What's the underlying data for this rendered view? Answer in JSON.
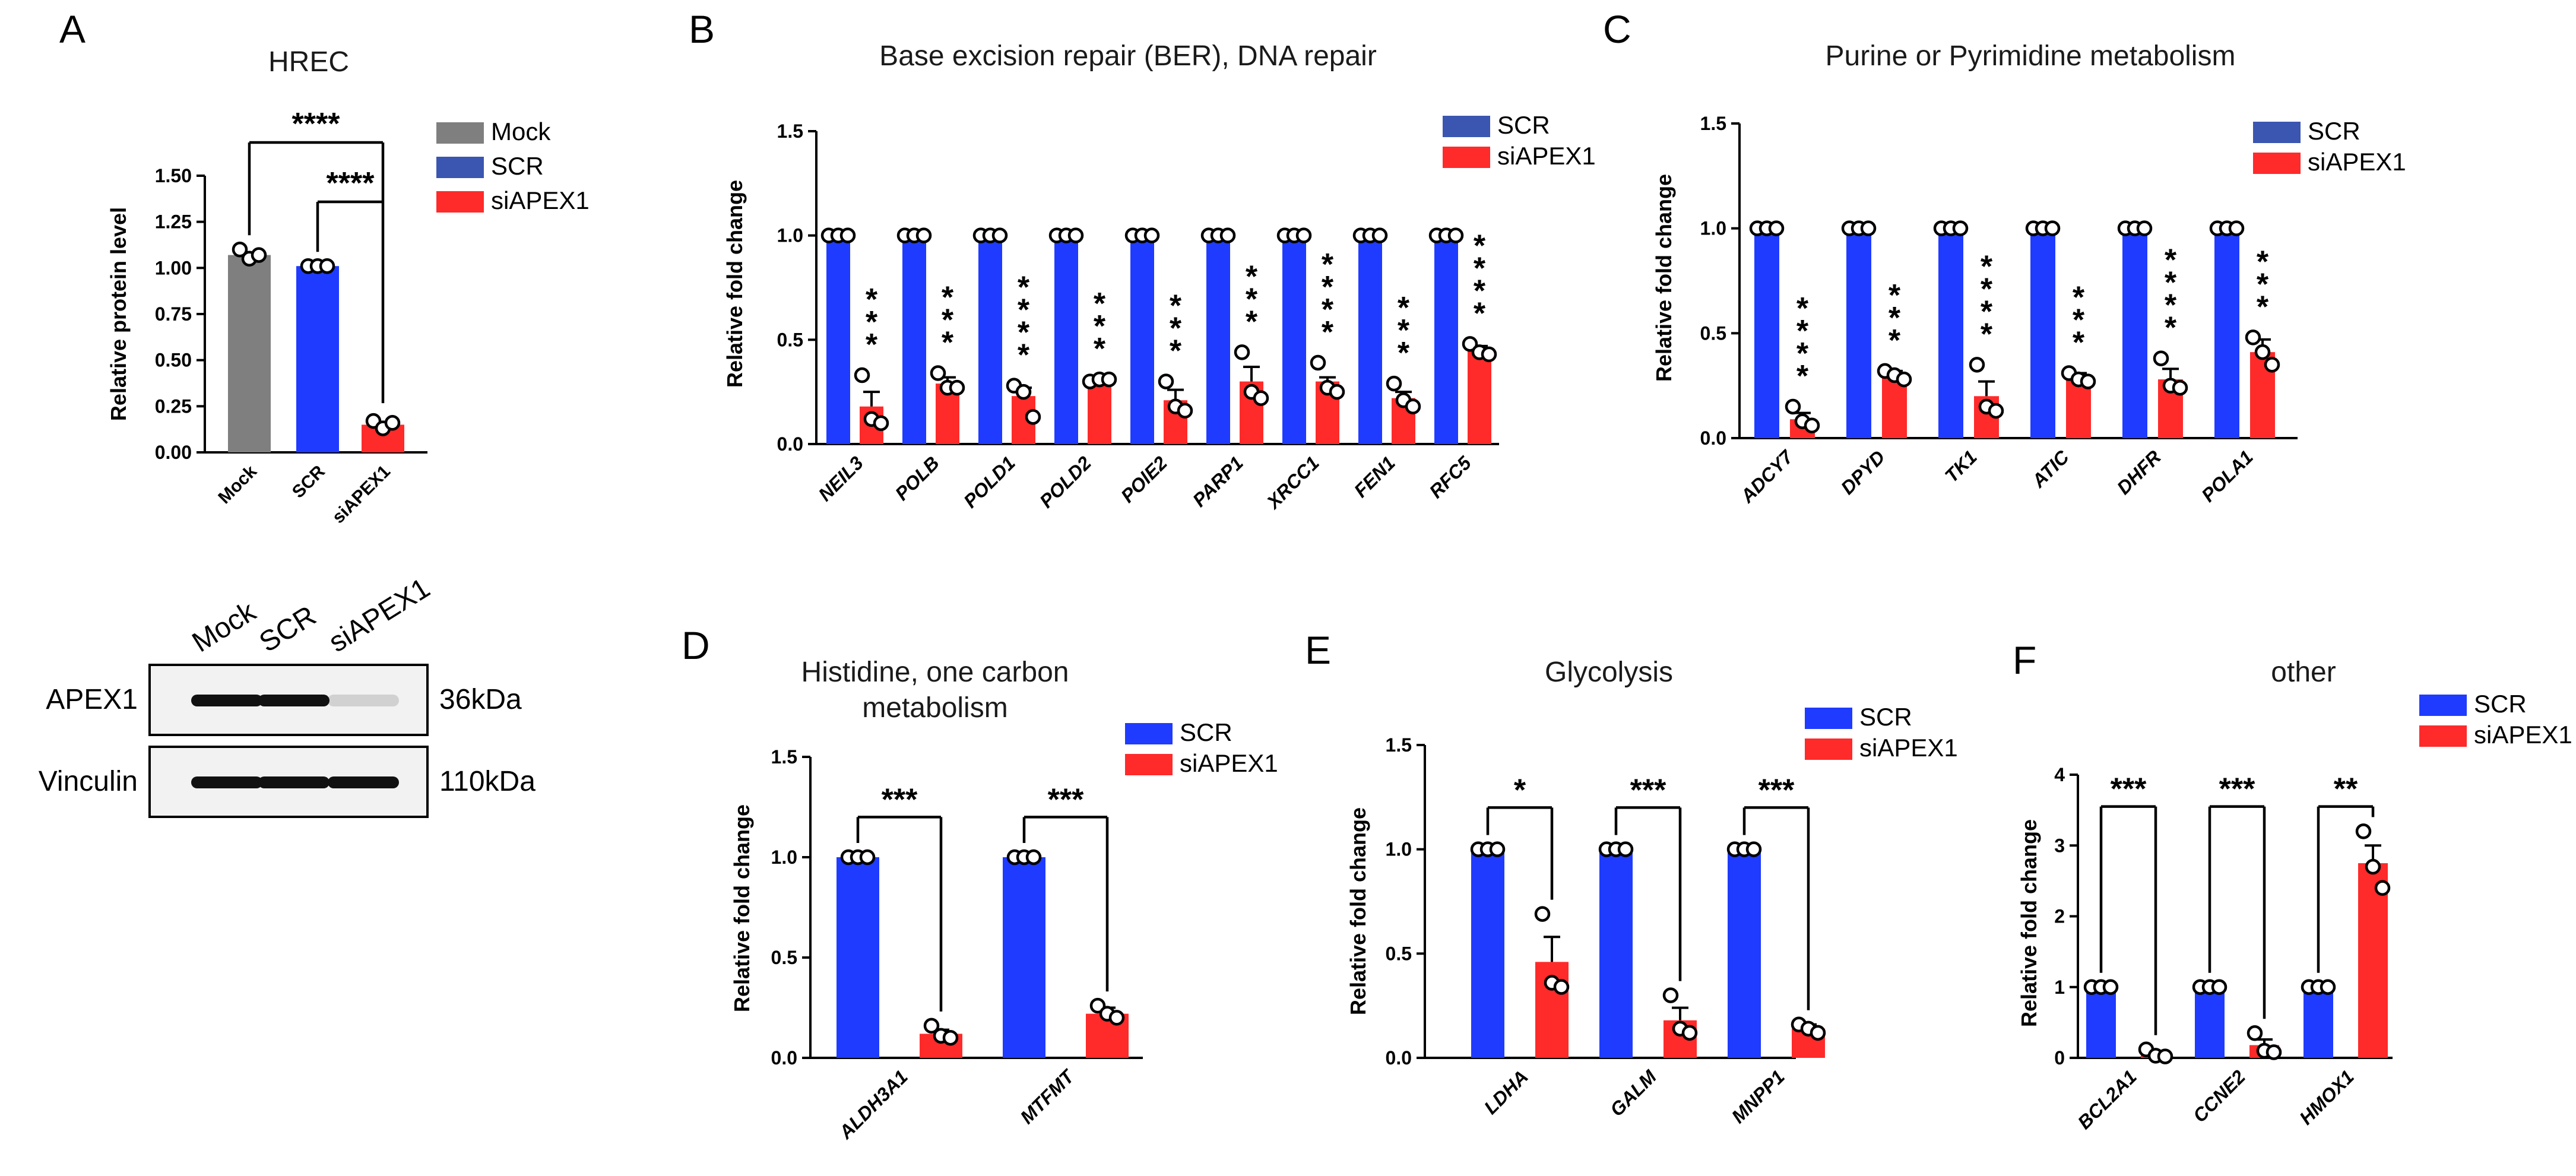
{
  "colors": {
    "mock": "#7f7f7f",
    "scr": "#1f3bff",
    "si": "#ff2a2a",
    "legend_scr_dark": "#3a56b0"
  },
  "panelA": {
    "label": "A",
    "title": "HREC",
    "ylabel": "Relative protein level",
    "chart_data": {
      "type": "bar",
      "categories": [
        "Mock",
        "SCR",
        "siAPEX1"
      ],
      "values": [
        1.07,
        1.01,
        0.15
      ],
      "points": [
        [
          1.1,
          1.05,
          1.07
        ],
        [
          1.01,
          1.01,
          1.01
        ],
        [
          0.17,
          0.13,
          0.16
        ]
      ],
      "ylim": [
        0,
        1.5
      ],
      "yticks": [
        "0.00",
        "0.25",
        "0.50",
        "0.75",
        "1.00",
        "1.25",
        "1.50"
      ],
      "legend": [
        "Mock",
        "SCR",
        "siAPEX1"
      ],
      "sig": [
        "****",
        "****"
      ]
    },
    "blot": {
      "lanes": [
        "Mock",
        "SCR",
        "siAPEX1"
      ],
      "rows": [
        {
          "name": "APEX1",
          "kda": "36kDa"
        },
        {
          "name": "Vinculin",
          "kda": "110kDa"
        }
      ]
    }
  },
  "panelB": {
    "label": "B",
    "title": "Base excision repair (BER), DNA repair",
    "ylabel": "Relative fold change",
    "chart_data": {
      "type": "bar",
      "categories": [
        "NEIL3",
        "POLB",
        "POLD1",
        "POLD2",
        "POlE2",
        "PARP1",
        "XRCC1",
        "FEN1",
        "RFC5"
      ],
      "ylim": [
        0,
        1.5
      ],
      "yticks": [
        "0.0",
        "0.5",
        "1.0",
        "1.5"
      ],
      "series": [
        {
          "name": "SCR",
          "values": [
            1,
            1,
            1,
            1,
            1,
            1,
            1,
            1,
            1
          ]
        },
        {
          "name": "siAPEX1",
          "values": [
            0.18,
            0.29,
            0.23,
            0.31,
            0.21,
            0.3,
            0.3,
            0.22,
            0.45
          ],
          "err": [
            0.07,
            0.03,
            0.04,
            0.01,
            0.05,
            0.07,
            0.02,
            0.03,
            0.02
          ]
        }
      ],
      "points": [
        [
          0.33,
          0.12,
          0.1
        ],
        [
          0.34,
          0.27,
          0.27
        ],
        [
          0.28,
          0.25,
          0.13
        ],
        [
          0.3,
          0.31,
          0.31
        ],
        [
          0.3,
          0.18,
          0.16
        ],
        [
          0.44,
          0.25,
          0.22
        ],
        [
          0.39,
          0.27,
          0.25
        ],
        [
          0.29,
          0.21,
          0.18
        ],
        [
          0.48,
          0.44,
          0.43
        ]
      ],
      "sig": [
        "***",
        "***",
        "****",
        "***",
        "***",
        "***",
        "****",
        "***",
        "****"
      ],
      "legend": [
        "SCR",
        "siAPEX1"
      ]
    }
  },
  "panelC": {
    "label": "C",
    "title": "Purine or Pyrimidine metabolism",
    "ylabel": "Relative fold change",
    "chart_data": {
      "type": "bar",
      "categories": [
        "ADCY7",
        "DPYD",
        "TK1",
        "ATIC",
        "DHFR",
        "POLA1"
      ],
      "ylim": [
        0,
        1.5
      ],
      "yticks": [
        "0.0",
        "0.5",
        "1.0",
        "1.5"
      ],
      "series": [
        {
          "name": "SCR",
          "values": [
            1,
            1,
            1,
            1,
            1,
            1
          ]
        },
        {
          "name": "siAPEX1",
          "values": [
            0.09,
            0.3,
            0.2,
            0.29,
            0.28,
            0.41
          ],
          "err": [
            0.03,
            0.02,
            0.07,
            0.02,
            0.05,
            0.06
          ]
        }
      ],
      "points": [
        [
          0.15,
          0.08,
          0.06
        ],
        [
          0.32,
          0.3,
          0.28
        ],
        [
          0.35,
          0.15,
          0.13
        ],
        [
          0.31,
          0.28,
          0.27
        ],
        [
          0.38,
          0.25,
          0.24
        ],
        [
          0.48,
          0.41,
          0.35
        ]
      ],
      "sig": [
        "****",
        "***",
        "****",
        "***",
        "****",
        "***"
      ],
      "legend": [
        "SCR",
        "siAPEX1"
      ]
    }
  },
  "panelD": {
    "label": "D",
    "title_line1": "Histidine, one carbon",
    "title_line2": "metabolism",
    "ylabel": "Relative fold change",
    "chart_data": {
      "type": "bar",
      "categories": [
        "ALDH3A1",
        "MTFMT"
      ],
      "ylim": [
        0,
        1.5
      ],
      "yticks": [
        "0.0",
        "0.5",
        "1.0",
        "1.5"
      ],
      "series": [
        {
          "name": "SCR",
          "values": [
            1,
            1
          ]
        },
        {
          "name": "siAPEX1",
          "values": [
            0.12,
            0.22
          ],
          "err": [
            0.02,
            0.03
          ]
        }
      ],
      "points": [
        [
          0.16,
          0.11,
          0.1
        ],
        [
          0.26,
          0.22,
          0.2
        ]
      ],
      "sig": [
        "***",
        "***"
      ],
      "legend": [
        "SCR",
        "siAPEX1"
      ]
    }
  },
  "panelE": {
    "label": "E",
    "title": "Glycolysis",
    "ylabel": "Relative fold change",
    "chart_data": {
      "type": "bar",
      "categories": [
        "LDHA",
        "GALM",
        "MNPP1"
      ],
      "ylim": [
        0,
        1.5
      ],
      "yticks": [
        "0.0",
        "0.5",
        "1.0",
        "1.5"
      ],
      "series": [
        {
          "name": "SCR",
          "values": [
            1,
            1,
            1
          ]
        },
        {
          "name": "siAPEX1",
          "values": [
            0.46,
            0.18,
            0.14
          ],
          "err": [
            0.12,
            0.06,
            0.02
          ]
        }
      ],
      "points": [
        [
          0.69,
          0.36,
          0.34
        ],
        [
          0.3,
          0.14,
          0.12
        ],
        [
          0.16,
          0.14,
          0.12
        ]
      ],
      "sig": [
        "*",
        "***",
        "***"
      ],
      "legend": [
        "SCR",
        "siAPEX1"
      ]
    }
  },
  "panelF": {
    "label": "F",
    "title": "other",
    "ylabel": "Relative fold change",
    "chart_data": {
      "type": "bar",
      "categories": [
        "BCL2A1",
        "CCNE2",
        "HMOX1"
      ],
      "ylim": [
        0,
        4
      ],
      "yticks": [
        "0",
        "1",
        "2",
        "3",
        "4"
      ],
      "series": [
        {
          "name": "SCR",
          "values": [
            1,
            1,
            1
          ]
        },
        {
          "name": "siAPEX1",
          "values": [
            0.06,
            0.18,
            2.75
          ],
          "err": [
            0.03,
            0.08,
            0.25
          ]
        }
      ],
      "points": [
        [
          0.12,
          0.03,
          0.02
        ],
        [
          0.35,
          0.1,
          0.08
        ],
        [
          3.2,
          2.7,
          2.4
        ]
      ],
      "sig": [
        "***",
        "***",
        "**"
      ],
      "legend": [
        "SCR",
        "siAPEX1"
      ]
    }
  }
}
